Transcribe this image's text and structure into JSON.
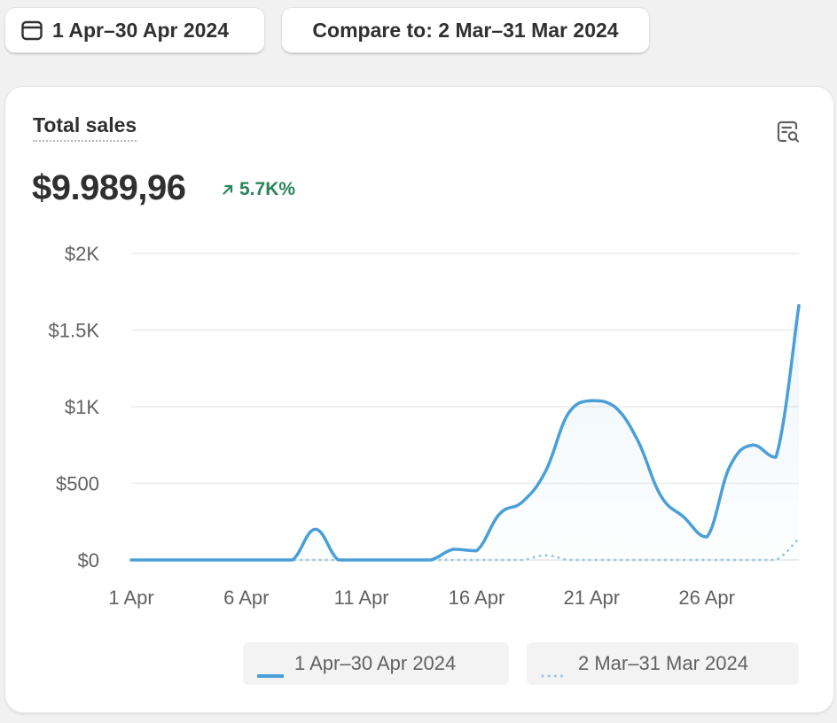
{
  "toolbar": {
    "date_range_label": "1 Apr–30 Apr 2024",
    "compare_label": "Compare to: 2 Mar–31 Mar 2024"
  },
  "card": {
    "title": "Total sales",
    "total_value": "$9.989,96",
    "change_label": "5.7K%",
    "change_color": "#29845a",
    "explore_icon": "explore-data-icon"
  },
  "legend": {
    "current_label": "1 Apr–30 Apr 2024",
    "previous_label": "2 Mar–31 Mar 2024"
  },
  "chart_data": {
    "type": "line",
    "title": "",
    "xlabel": "",
    "ylabel": "",
    "ylim": [
      0,
      2000
    ],
    "yticks": [
      0,
      500,
      1000,
      1500,
      2000
    ],
    "ytick_labels": [
      "$0",
      "$500",
      "$1K",
      "$1.5K",
      "$2K"
    ],
    "x_tick_labels": [
      "1 Apr",
      "6 Apr",
      "11 Apr",
      "16 Apr",
      "21 Apr",
      "26 Apr"
    ],
    "x_tick_days": [
      1,
      6,
      11,
      16,
      21,
      26
    ],
    "x_days": [
      1,
      2,
      3,
      4,
      5,
      6,
      7,
      8,
      9,
      10,
      11,
      12,
      13,
      14,
      15,
      16,
      17,
      18,
      19,
      20,
      21,
      22,
      23,
      24,
      25,
      26,
      27,
      28,
      29,
      30
    ],
    "grid": true,
    "legend_position": "bottom",
    "series": [
      {
        "name": "1 Apr–30 Apr 2024",
        "color": "#4a9fd8",
        "style": "solid",
        "values": [
          0,
          0,
          0,
          0,
          0,
          0,
          0,
          0,
          200,
          0,
          0,
          0,
          0,
          0,
          70,
          60,
          300,
          380,
          580,
          960,
          1040,
          1000,
          780,
          420,
          280,
          150,
          610,
          750,
          670,
          1660
        ]
      },
      {
        "name": "2 Mar–31 Mar 2024",
        "color": "#9cc9e6",
        "style": "dotted",
        "values": [
          0,
          0,
          0,
          0,
          0,
          0,
          0,
          0,
          0,
          0,
          0,
          0,
          0,
          0,
          0,
          0,
          0,
          0,
          30,
          0,
          0,
          0,
          0,
          0,
          0,
          0,
          0,
          0,
          0,
          140
        ]
      }
    ]
  }
}
